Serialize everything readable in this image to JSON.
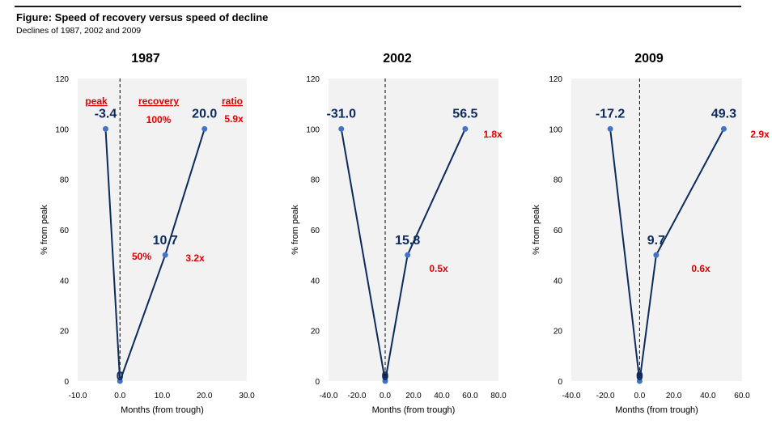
{
  "figure": {
    "title": "Figure: Speed of recovery versus speed of decline",
    "subtitle": "Declines of 1987, 2002 and 2009"
  },
  "colors": {
    "line": "#0d2a5c",
    "point": "#4472c4",
    "red": "#e00000",
    "plot_bg": "#f2f2f2"
  },
  "chart_data": [
    {
      "type": "line",
      "title": "1987",
      "xlabel": "Months (from trough)",
      "ylabel": "% from peak",
      "xlim": [
        -10,
        30
      ],
      "ylim": [
        0,
        120
      ],
      "xticks": [
        -10,
        0,
        10,
        20,
        30
      ],
      "xtick_labels": [
        "-10.0",
        "0.0",
        "10.0",
        "20.0",
        "30.0"
      ],
      "yticks": [
        0,
        20,
        40,
        60,
        80,
        100,
        120
      ],
      "points": [
        {
          "x": -3.4,
          "y": 100,
          "label": "-3.4"
        },
        {
          "x": 0,
          "y": 0,
          "label": "0"
        },
        {
          "x": 10.7,
          "y": 50,
          "label": "10.7"
        },
        {
          "x": 20.0,
          "y": 100,
          "label": "20.0"
        }
      ],
      "headers": [
        "peak",
        "recovery",
        "ratio"
      ],
      "annotations": [
        "100%",
        "5.9x",
        "50%",
        "3.2x"
      ],
      "grid": false
    },
    {
      "type": "line",
      "title": "2002",
      "xlabel": "Months (from trough)",
      "ylabel": "% from peak",
      "xlim": [
        -40,
        80
      ],
      "ylim": [
        0,
        120
      ],
      "xticks": [
        -40,
        -20,
        0,
        20,
        40,
        60,
        80
      ],
      "xtick_labels": [
        "-40.0",
        "-20.0",
        "0.0",
        "20.0",
        "40.0",
        "60.0",
        "80.0"
      ],
      "yticks": [
        0,
        20,
        40,
        60,
        80,
        100,
        120
      ],
      "points": [
        {
          "x": -31.0,
          "y": 100,
          "label": "-31.0"
        },
        {
          "x": 0,
          "y": 0,
          "label": "0"
        },
        {
          "x": 15.8,
          "y": 50,
          "label": "15.8"
        },
        {
          "x": 56.5,
          "y": 100,
          "label": "56.5"
        }
      ],
      "annotations": [
        "1.8x",
        "0.5x"
      ],
      "grid": false
    },
    {
      "type": "line",
      "title": "2009",
      "xlabel": "Months (from trough)",
      "ylabel": "% from peak",
      "xlim": [
        -40,
        60
      ],
      "ylim": [
        0,
        120
      ],
      "xticks": [
        -40,
        -20,
        0,
        20,
        40,
        60
      ],
      "xtick_labels": [
        "-40.0",
        "-20.0",
        "0.0",
        "20.0",
        "40.0",
        "60.0"
      ],
      "yticks": [
        0,
        20,
        40,
        60,
        80,
        100,
        120
      ],
      "points": [
        {
          "x": -17.2,
          "y": 100,
          "label": "-17.2"
        },
        {
          "x": 0,
          "y": 0,
          "label": "0"
        },
        {
          "x": 9.7,
          "y": 50,
          "label": "9.7"
        },
        {
          "x": 49.3,
          "y": 100,
          "label": "49.3"
        }
      ],
      "annotations": [
        "2.9x",
        "0.6x"
      ],
      "grid": false
    }
  ]
}
